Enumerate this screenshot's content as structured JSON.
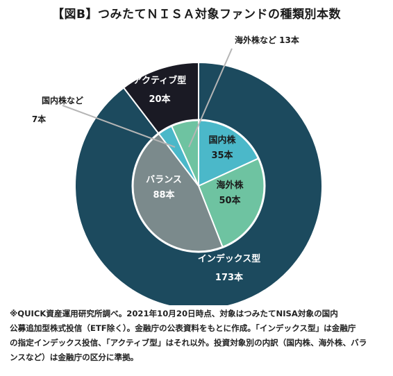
{
  "title": "【図B】つみたてＮＩＳＡ対象ファンドの種類別本数",
  "chart_data": [
    {
      "type": "pie",
      "ring": "outer",
      "categories": [
        "インデックス型",
        "アクティブ型"
      ],
      "values": [
        173,
        20
      ],
      "value_labels": [
        "173本",
        "20本"
      ],
      "colors": [
        "#1c4a5e",
        "#1a1a24"
      ]
    },
    {
      "type": "pie",
      "ring": "inner",
      "categories": [
        "国内株",
        "海外株",
        "バランス",
        "国内株など",
        "海外株など"
      ],
      "values": [
        35,
        50,
        88,
        7,
        13
      ],
      "value_labels": [
        "35本",
        "50本",
        "88本",
        "7本",
        "13本"
      ],
      "colors": [
        "#4bb8c9",
        "#6ec3a1",
        "#7b8a8c",
        "#4bb8c9",
        "#6ec3a1"
      ]
    }
  ],
  "callouts": {
    "kokunai_nado": {
      "name": "国内株など",
      "value": "7本"
    },
    "kaigai_nado": {
      "text": "海外株など 13本"
    }
  },
  "footnote": [
    "※QUICK資産運用研究所調べ。2021年10月20日時点、対象はつみたてNISA対象の国内",
    "公募追加型株式投信（ETF除く）。金融庁の公表資料をもとに作成。「インデックス型」は金融庁",
    "の指定インデックス投信、「アクティブ型」はそれ以外。投資対象別の内訳（国内株、海外株、バラ",
    "ンスなど）は金融庁の区分に準拠。"
  ]
}
